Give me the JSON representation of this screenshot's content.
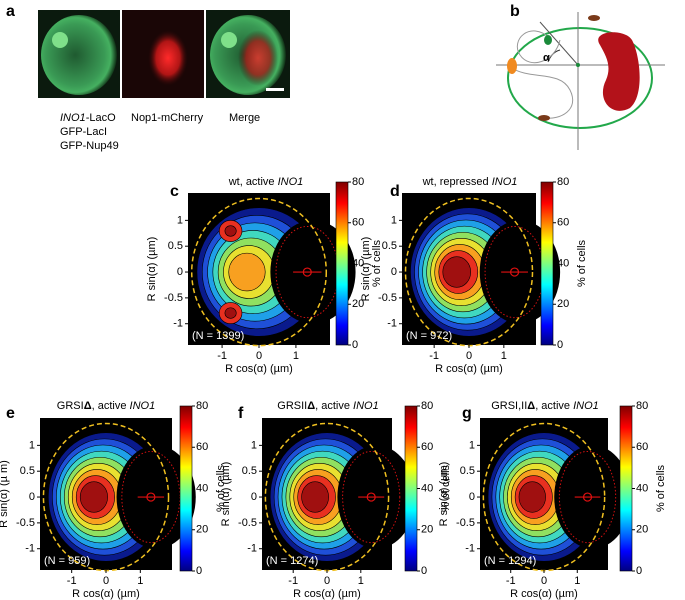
{
  "panel_a": {
    "letter": "a",
    "label_green": [
      "INO1",
      "-LacO"
    ],
    "label_green_2": "GFP-LacI",
    "label_green_3": "GFP-Nup49",
    "label_red": "Nop1-mCherry",
    "label_merge": "Merge"
  },
  "panel_b": {
    "letter": "b",
    "angle_label": "α"
  },
  "plots": [
    {
      "letter": "c",
      "title": [
        "wt, active ",
        "INO1"
      ],
      "n_label": "(N = 1399)",
      "yticks": [
        "1",
        "0.5",
        "0",
        "-0.5",
        "-1"
      ],
      "xticks": [
        "-1",
        "0",
        "1"
      ],
      "colorbar_ticks": [
        "80",
        "60",
        "40",
        "20",
        "0"
      ],
      "colorbar_label": "% of cells",
      "xlabel": "R cos(α) (µm)",
      "ylabel": "R sin(α) (µm)"
    },
    {
      "letter": "d",
      "title": [
        "wt, repressed ",
        "INO1"
      ],
      "n_label": "(N = 972)",
      "yticks": [
        "1",
        "0.5",
        "0",
        "-0.5",
        "-1"
      ],
      "xticks": [
        "-1",
        "0",
        "1"
      ],
      "colorbar_ticks": [
        "80",
        "60",
        "40",
        "20",
        "0"
      ],
      "colorbar_label": "% of cells",
      "xlabel": "R cos(α) (µm)",
      "ylabel": "R sin(α) (µm)"
    },
    {
      "letter": "e",
      "title": [
        "GRSI",
        "Δ",
        ", active ",
        "INO1"
      ],
      "n_label": "(N = 959)",
      "yticks": [
        "1",
        "0.5",
        "0",
        "-0.5",
        "-1"
      ],
      "xticks": [
        "-1",
        "0",
        "1"
      ],
      "colorbar_ticks": [
        "80",
        "60",
        "40",
        "20",
        "0"
      ],
      "colorbar_label": "% of cells",
      "xlabel": "R cos(α) (µm)",
      "ylabel": "R sin(α) (µ m)"
    },
    {
      "letter": "f",
      "title": [
        "GRSII",
        "Δ",
        ", active ",
        "INO1"
      ],
      "n_label": "(N = 1274)",
      "yticks": [
        "1",
        "0.5",
        "0",
        "-0.5",
        "-1"
      ],
      "xticks": [
        "-1",
        "0",
        "1"
      ],
      "colorbar_ticks": [
        "80",
        "60",
        "40",
        "20",
        "0"
      ],
      "colorbar_label": "% of cells",
      "xlabel": "R cos(α) (µm)",
      "ylabel": "R sin(α) (µm)"
    },
    {
      "letter": "g",
      "title": [
        "GRSI,II",
        "Δ",
        ", active ",
        "INO1"
      ],
      "n_label": "(N = 1294)",
      "yticks": [
        "1",
        "0.5",
        "0",
        "-0.5",
        "-1"
      ],
      "xticks": [
        "-1",
        "0",
        "1"
      ],
      "colorbar_ticks": [
        "80",
        "60",
        "40",
        "20",
        "0"
      ],
      "colorbar_label": "% of cells",
      "xlabel": "R cos(α) (µm)",
      "ylabel": "R sin(α) (µm)"
    }
  ]
}
